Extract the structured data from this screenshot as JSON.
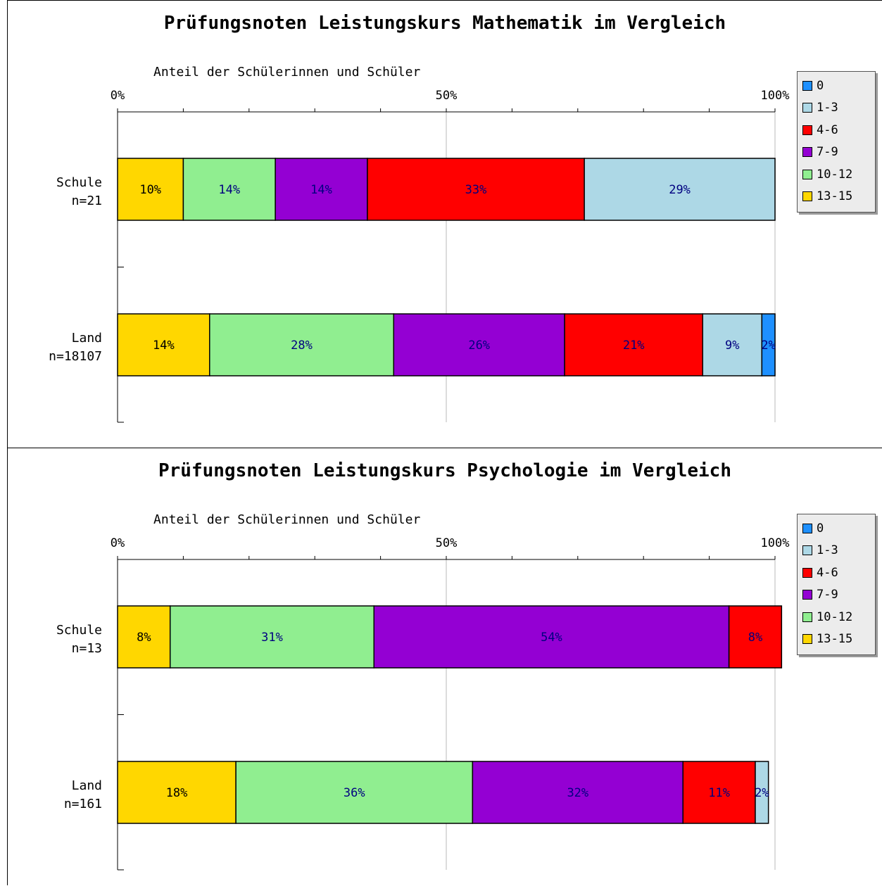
{
  "chart_data": [
    {
      "type": "bar",
      "orientation": "horizontal",
      "stacked": true,
      "title": "Prüfungsnoten Leistungskurs Mathematik im Vergleich",
      "xlabel": "Anteil der Schülerinnen und Schüler",
      "xlim": [
        0,
        100
      ],
      "x_ticks": [
        "0%",
        "50%",
        "100%"
      ],
      "categories": [
        "Schule",
        "Land"
      ],
      "category_sublabels": [
        "n=21",
        "n=18107"
      ],
      "series": [
        {
          "name": "13-15",
          "color": "#ffd700",
          "values": [
            10,
            14
          ],
          "labels": [
            "10%",
            "14%"
          ]
        },
        {
          "name": "10-12",
          "color": "#90ee90",
          "values": [
            14,
            28
          ],
          "labels": [
            "14%",
            "28%"
          ]
        },
        {
          "name": "7-9",
          "color": "#9400d3",
          "values": [
            14,
            26
          ],
          "labels": [
            "14%",
            "26%"
          ]
        },
        {
          "name": "4-6",
          "color": "#ff0000",
          "values": [
            33,
            21
          ],
          "labels": [
            "33%",
            "21%"
          ]
        },
        {
          "name": "1-3",
          "color": "#add8e6",
          "values": [
            29,
            9
          ],
          "labels": [
            "29%",
            "9%"
          ]
        },
        {
          "name": "0",
          "color": "#1e90ff",
          "values": [
            0,
            2
          ],
          "labels": [
            "",
            "2%"
          ]
        }
      ],
      "legend": [
        "0",
        "1-3",
        "4-6",
        "7-9",
        "10-12",
        "13-15"
      ],
      "legend_position": "right",
      "grid": true
    },
    {
      "type": "bar",
      "orientation": "horizontal",
      "stacked": true,
      "title": "Prüfungsnoten Leistungskurs Psychologie im Vergleich",
      "xlabel": "Anteil der Schülerinnen und Schüler",
      "xlim": [
        0,
        100
      ],
      "x_ticks": [
        "0%",
        "50%",
        "100%"
      ],
      "categories": [
        "Schule",
        "Land"
      ],
      "category_sublabels": [
        "n=13",
        "n=161"
      ],
      "series": [
        {
          "name": "13-15",
          "color": "#ffd700",
          "values": [
            8,
            18
          ],
          "labels": [
            "8%",
            "18%"
          ]
        },
        {
          "name": "10-12",
          "color": "#90ee90",
          "values": [
            31,
            36
          ],
          "labels": [
            "31%",
            "36%"
          ]
        },
        {
          "name": "7-9",
          "color": "#9400d3",
          "values": [
            54,
            32
          ],
          "labels": [
            "54%",
            "32%"
          ]
        },
        {
          "name": "4-6",
          "color": "#ff0000",
          "values": [
            8,
            11
          ],
          "labels": [
            "8%",
            "11%"
          ]
        },
        {
          "name": "1-3",
          "color": "#add8e6",
          "values": [
            0,
            2
          ],
          "labels": [
            "",
            "2%"
          ]
        },
        {
          "name": "0",
          "color": "#1e90ff",
          "values": [
            0,
            0
          ],
          "labels": [
            "",
            ""
          ]
        }
      ],
      "legend": [
        "0",
        "1-3",
        "4-6",
        "7-9",
        "10-12",
        "13-15"
      ],
      "legend_position": "right",
      "grid": true
    }
  ]
}
